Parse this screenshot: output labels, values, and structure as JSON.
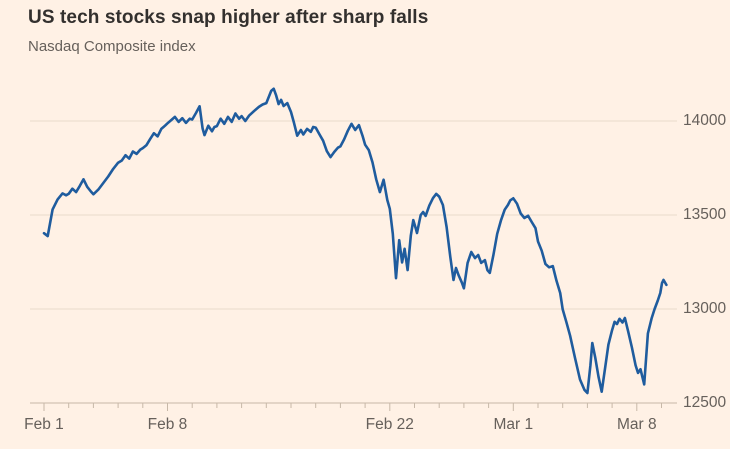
{
  "header": {
    "title": "US tech stocks snap higher after sharp falls",
    "subtitle": "Nasdaq Composite index"
  },
  "colors": {
    "background": "#FFF1E5",
    "line": "#1F5C9E",
    "grid": "#E8DACB",
    "axis": "#C7B8A8",
    "text_primary": "#33302E",
    "text_secondary": "#66605B"
  },
  "chart_data": {
    "type": "line",
    "title": "US tech stocks snap higher after sharp falls",
    "subtitle": "Nasdaq Composite index",
    "legend": "none",
    "grid": "horizontal",
    "x_unit": "trading days, Feb 1 to Mar 9",
    "ylim": [
      12450,
      14230
    ],
    "y_ticks": [
      {
        "value": 14000,
        "label": "14000"
      },
      {
        "value": 13500,
        "label": "13500"
      },
      {
        "value": 13000,
        "label": "13000"
      },
      {
        "value": 12500,
        "label": "12500"
      }
    ],
    "x_ticks_labeled": [
      {
        "day": 0,
        "label": "Feb 1"
      },
      {
        "day": 5,
        "label": "Feb 8"
      },
      {
        "day": 14,
        "label": "Feb 22"
      },
      {
        "day": 19,
        "label": "Mar 1"
      },
      {
        "day": 24,
        "label": "Mar 8"
      }
    ],
    "x_minor_tick_days": [
      0,
      1,
      2,
      3,
      4,
      5,
      6,
      7,
      8,
      9,
      10,
      11,
      12,
      13,
      14,
      15,
      16,
      17,
      18,
      19,
      20,
      21,
      22,
      23,
      24,
      25
    ],
    "series": [
      {
        "name": "Nasdaq Composite index",
        "points": [
          [
            0,
            13403
          ],
          [
            0.15,
            13388
          ],
          [
            0.35,
            13530
          ],
          [
            0.55,
            13583
          ],
          [
            0.75,
            13615
          ],
          [
            0.9,
            13605
          ],
          [
            1.0,
            13613
          ],
          [
            1.15,
            13640
          ],
          [
            1.3,
            13622
          ],
          [
            1.45,
            13655
          ],
          [
            1.6,
            13690
          ],
          [
            1.75,
            13650
          ],
          [
            1.9,
            13625
          ],
          [
            2.0,
            13610
          ],
          [
            2.2,
            13635
          ],
          [
            2.4,
            13670
          ],
          [
            2.6,
            13705
          ],
          [
            2.8,
            13745
          ],
          [
            3.0,
            13778
          ],
          [
            3.15,
            13790
          ],
          [
            3.3,
            13818
          ],
          [
            3.45,
            13800
          ],
          [
            3.6,
            13838
          ],
          [
            3.75,
            13825
          ],
          [
            3.9,
            13848
          ],
          [
            4.0,
            13856
          ],
          [
            4.15,
            13872
          ],
          [
            4.3,
            13905
          ],
          [
            4.45,
            13935
          ],
          [
            4.6,
            13918
          ],
          [
            4.75,
            13958
          ],
          [
            4.9,
            13975
          ],
          [
            5.0,
            13988
          ],
          [
            5.15,
            14005
          ],
          [
            5.3,
            14022
          ],
          [
            5.45,
            13995
          ],
          [
            5.6,
            14015
          ],
          [
            5.75,
            13990
          ],
          [
            5.9,
            14012
          ],
          [
            6.0,
            14008
          ],
          [
            6.15,
            14042
          ],
          [
            6.3,
            14078
          ],
          [
            6.42,
            13960
          ],
          [
            6.5,
            13925
          ],
          [
            6.65,
            13975
          ],
          [
            6.8,
            13945
          ],
          [
            6.9,
            13968
          ],
          [
            7.0,
            13973
          ],
          [
            7.15,
            14012
          ],
          [
            7.3,
            13985
          ],
          [
            7.45,
            14022
          ],
          [
            7.6,
            13995
          ],
          [
            7.75,
            14040
          ],
          [
            7.9,
            14012
          ],
          [
            8.0,
            14026
          ],
          [
            8.15,
            14000
          ],
          [
            8.3,
            14028
          ],
          [
            8.5,
            14052
          ],
          [
            8.7,
            14075
          ],
          [
            8.85,
            14088
          ],
          [
            9.0,
            14095
          ],
          [
            9.1,
            14128
          ],
          [
            9.2,
            14160
          ],
          [
            9.3,
            14172
          ],
          [
            9.4,
            14135
          ],
          [
            9.5,
            14090
          ],
          [
            9.6,
            14112
          ],
          [
            9.7,
            14080
          ],
          [
            9.85,
            14095
          ],
          [
            10.0,
            14048
          ],
          [
            10.12,
            13990
          ],
          [
            10.25,
            13922
          ],
          [
            10.4,
            13952
          ],
          [
            10.5,
            13928
          ],
          [
            10.65,
            13958
          ],
          [
            10.8,
            13942
          ],
          [
            10.9,
            13968
          ],
          [
            11.0,
            13965
          ],
          [
            11.15,
            13930
          ],
          [
            11.3,
            13895
          ],
          [
            11.45,
            13840
          ],
          [
            11.6,
            13808
          ],
          [
            11.75,
            13835
          ],
          [
            11.9,
            13858
          ],
          [
            12.0,
            13865
          ],
          [
            12.15,
            13902
          ],
          [
            12.3,
            13948
          ],
          [
            12.45,
            13985
          ],
          [
            12.6,
            13952
          ],
          [
            12.75,
            13978
          ],
          [
            12.9,
            13920
          ],
          [
            13.0,
            13874
          ],
          [
            13.15,
            13845
          ],
          [
            13.3,
            13780
          ],
          [
            13.45,
            13690
          ],
          [
            13.6,
            13622
          ],
          [
            13.75,
            13688
          ],
          [
            13.9,
            13580
          ],
          [
            14.0,
            13533
          ],
          [
            14.12,
            13400
          ],
          [
            14.25,
            13164
          ],
          [
            14.38,
            13366
          ],
          [
            14.5,
            13248
          ],
          [
            14.6,
            13320
          ],
          [
            14.72,
            13207
          ],
          [
            14.85,
            13390
          ],
          [
            14.95,
            13473
          ],
          [
            15.05,
            13430
          ],
          [
            15.1,
            13404
          ],
          [
            15.25,
            13500
          ],
          [
            15.35,
            13516
          ],
          [
            15.45,
            13495
          ],
          [
            15.6,
            13550
          ],
          [
            15.75,
            13590
          ],
          [
            15.88,
            13612
          ],
          [
            16.0,
            13598
          ],
          [
            16.15,
            13553
          ],
          [
            16.3,
            13436
          ],
          [
            16.45,
            13277
          ],
          [
            16.58,
            13154
          ],
          [
            16.68,
            13218
          ],
          [
            16.78,
            13181
          ],
          [
            16.92,
            13140
          ],
          [
            17.0,
            13110
          ],
          [
            17.15,
            13245
          ],
          [
            17.3,
            13303
          ],
          [
            17.45,
            13271
          ],
          [
            17.58,
            13287
          ],
          [
            17.7,
            13245
          ],
          [
            17.85,
            13260
          ],
          [
            17.95,
            13207
          ],
          [
            18.05,
            13192
          ],
          [
            18.2,
            13290
          ],
          [
            18.35,
            13400
          ],
          [
            18.5,
            13470
          ],
          [
            18.65,
            13528
          ],
          [
            18.78,
            13553
          ],
          [
            18.88,
            13578
          ],
          [
            19.0,
            13589
          ],
          [
            19.15,
            13560
          ],
          [
            19.3,
            13508
          ],
          [
            19.45,
            13484
          ],
          [
            19.6,
            13496
          ],
          [
            19.75,
            13462
          ],
          [
            19.9,
            13430
          ],
          [
            20.0,
            13359
          ],
          [
            20.15,
            13310
          ],
          [
            20.3,
            13240
          ],
          [
            20.45,
            13222
          ],
          [
            20.6,
            13228
          ],
          [
            20.75,
            13150
          ],
          [
            20.9,
            13085
          ],
          [
            21.0,
            12998
          ],
          [
            21.15,
            12930
          ],
          [
            21.3,
            12858
          ],
          [
            21.5,
            12740
          ],
          [
            21.7,
            12625
          ],
          [
            21.88,
            12570
          ],
          [
            22.0,
            12553
          ],
          [
            22.12,
            12700
          ],
          [
            22.2,
            12819
          ],
          [
            22.32,
            12740
          ],
          [
            22.45,
            12640
          ],
          [
            22.58,
            12560
          ],
          [
            22.72,
            12690
          ],
          [
            22.85,
            12810
          ],
          [
            23.0,
            12888
          ],
          [
            23.1,
            12932
          ],
          [
            23.2,
            12920
          ],
          [
            23.3,
            12948
          ],
          [
            23.42,
            12928
          ],
          [
            23.52,
            12952
          ],
          [
            23.65,
            12880
          ],
          [
            23.8,
            12795
          ],
          [
            23.95,
            12700
          ],
          [
            24.05,
            12660
          ],
          [
            24.15,
            12680
          ],
          [
            24.3,
            12599
          ],
          [
            24.45,
            12870
          ],
          [
            24.6,
            12950
          ],
          [
            24.72,
            13000
          ],
          [
            24.85,
            13045
          ],
          [
            24.95,
            13085
          ],
          [
            25.02,
            13138
          ],
          [
            25.08,
            13155
          ],
          [
            25.2,
            13128
          ]
        ]
      }
    ]
  }
}
